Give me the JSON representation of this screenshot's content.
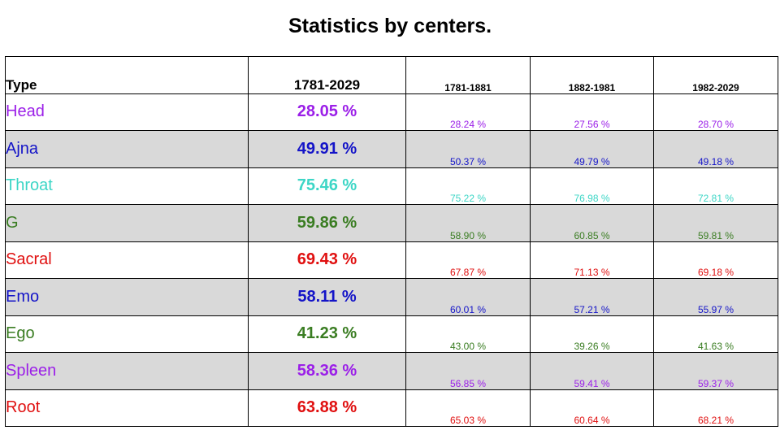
{
  "title": "Statistics by centers.",
  "headers": {
    "type": "Type",
    "total": "1781-2029",
    "period1": "1781-1881",
    "period2": "1882-1981",
    "period3": "1982-2029"
  },
  "rows": [
    {
      "type": "Head",
      "total": "28.05 %",
      "p1": "28.24 %",
      "p2": "27.56 %",
      "p3": "28.70 %",
      "color": "#9b1fe8",
      "shaded": false
    },
    {
      "type": "Ajna",
      "total": "49.91 %",
      "p1": "50.37 %",
      "p2": "49.79 %",
      "p3": "49.18 %",
      "color": "#1414c8",
      "shaded": true
    },
    {
      "type": "Throat",
      "total": "75.46 %",
      "p1": "75.22 %",
      "p2": "76.98 %",
      "p3": "72.81 %",
      "color": "#3dd6c6",
      "shaded": false
    },
    {
      "type": "G",
      "total": "59.86 %",
      "p1": "58.90 %",
      "p2": "60.85 %",
      "p3": "59.81 %",
      "color": "#3a7d22",
      "shaded": true
    },
    {
      "type": "Sacral",
      "total": "69.43 %",
      "p1": "67.87 %",
      "p2": "71.13 %",
      "p3": "69.18 %",
      "color": "#e01010",
      "shaded": false
    },
    {
      "type": "Emo",
      "total": "58.11 %",
      "p1": "60.01 %",
      "p2": "57.21 %",
      "p3": "55.97 %",
      "color": "#1414c8",
      "shaded": true
    },
    {
      "type": "Ego",
      "total": "41.23 %",
      "p1": "43.00 %",
      "p2": "39.26 %",
      "p3": "41.63 %",
      "color": "#3a7d22",
      "shaded": false
    },
    {
      "type": "Spleen",
      "total": "58.36 %",
      "p1": "56.85 %",
      "p2": "59.41 %",
      "p3": "59.37 %",
      "color": "#9b1fe8",
      "shaded": true
    },
    {
      "type": "Root",
      "total": "63.88 %",
      "p1": "65.03 %",
      "p2": "60.64 %",
      "p3": "68.21 %",
      "color": "#e01010",
      "shaded": false
    }
  ]
}
